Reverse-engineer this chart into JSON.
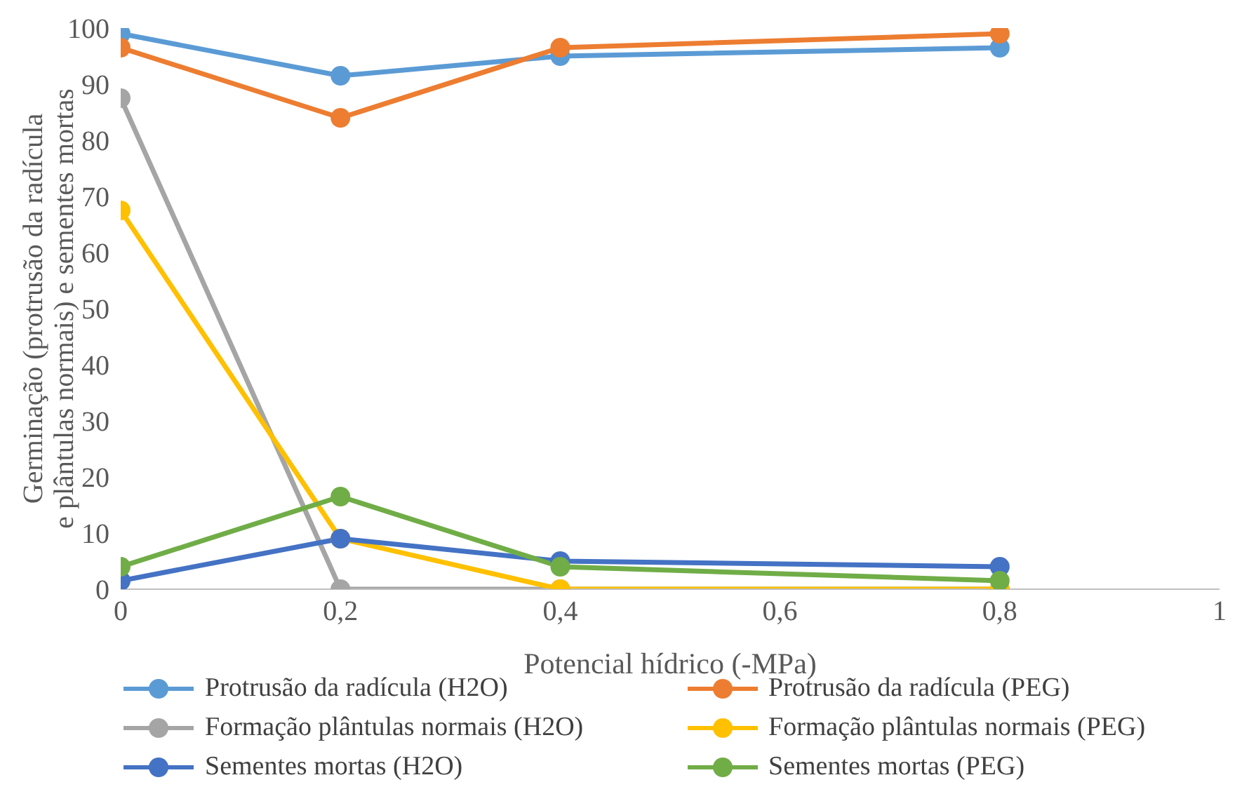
{
  "chart_data": {
    "type": "line",
    "xlabel": "Potencial hídrico (-MPa)",
    "ylabel": "Germinação (protrusão da radícula e plântulas normais) e sementes mortas",
    "x": [
      0,
      0.2,
      0.4,
      0.8
    ],
    "xlim": [
      0,
      1
    ],
    "xticks": [
      0,
      {
        "value": 0.2,
        "label": "0,2"
      },
      {
        "value": 0.4,
        "label": "0,4"
      },
      {
        "value": 0.6,
        "label": "0,6"
      },
      {
        "value": 0.8,
        "label": "0,8"
      },
      1
    ],
    "ylim": [
      0,
      100
    ],
    "yticks": [
      0,
      10,
      20,
      30,
      40,
      50,
      60,
      70,
      80,
      90,
      100
    ],
    "grid": false,
    "legend": "bottom",
    "marker": "circle",
    "line_style": "solid",
    "series": [
      {
        "name": "Protrusão da radícula (H2O)",
        "color": "#5b9bd5",
        "values": [
          99,
          91.5,
          95,
          96.5
        ]
      },
      {
        "name": "Protrusão da radícula (PEG)",
        "color": "#ed7d31",
        "values": [
          96.5,
          84,
          96.5,
          99
        ]
      },
      {
        "name": "Formação plântulas normais (H2O)",
        "color": "#a5a5a5",
        "values": [
          87.5,
          0,
          0,
          0
        ]
      },
      {
        "name": "Formação plântulas normais (PEG)",
        "color": "#ffc000",
        "values": [
          67.5,
          9,
          0,
          0
        ]
      },
      {
        "name": "Sementes mortas (H2O)",
        "color": "#4472c4",
        "values": [
          1.5,
          9,
          5,
          4
        ]
      },
      {
        "name": "Sementes mortas (PEG)",
        "color": "#70ad47",
        "values": [
          4,
          16.5,
          4,
          1.5
        ]
      }
    ]
  }
}
